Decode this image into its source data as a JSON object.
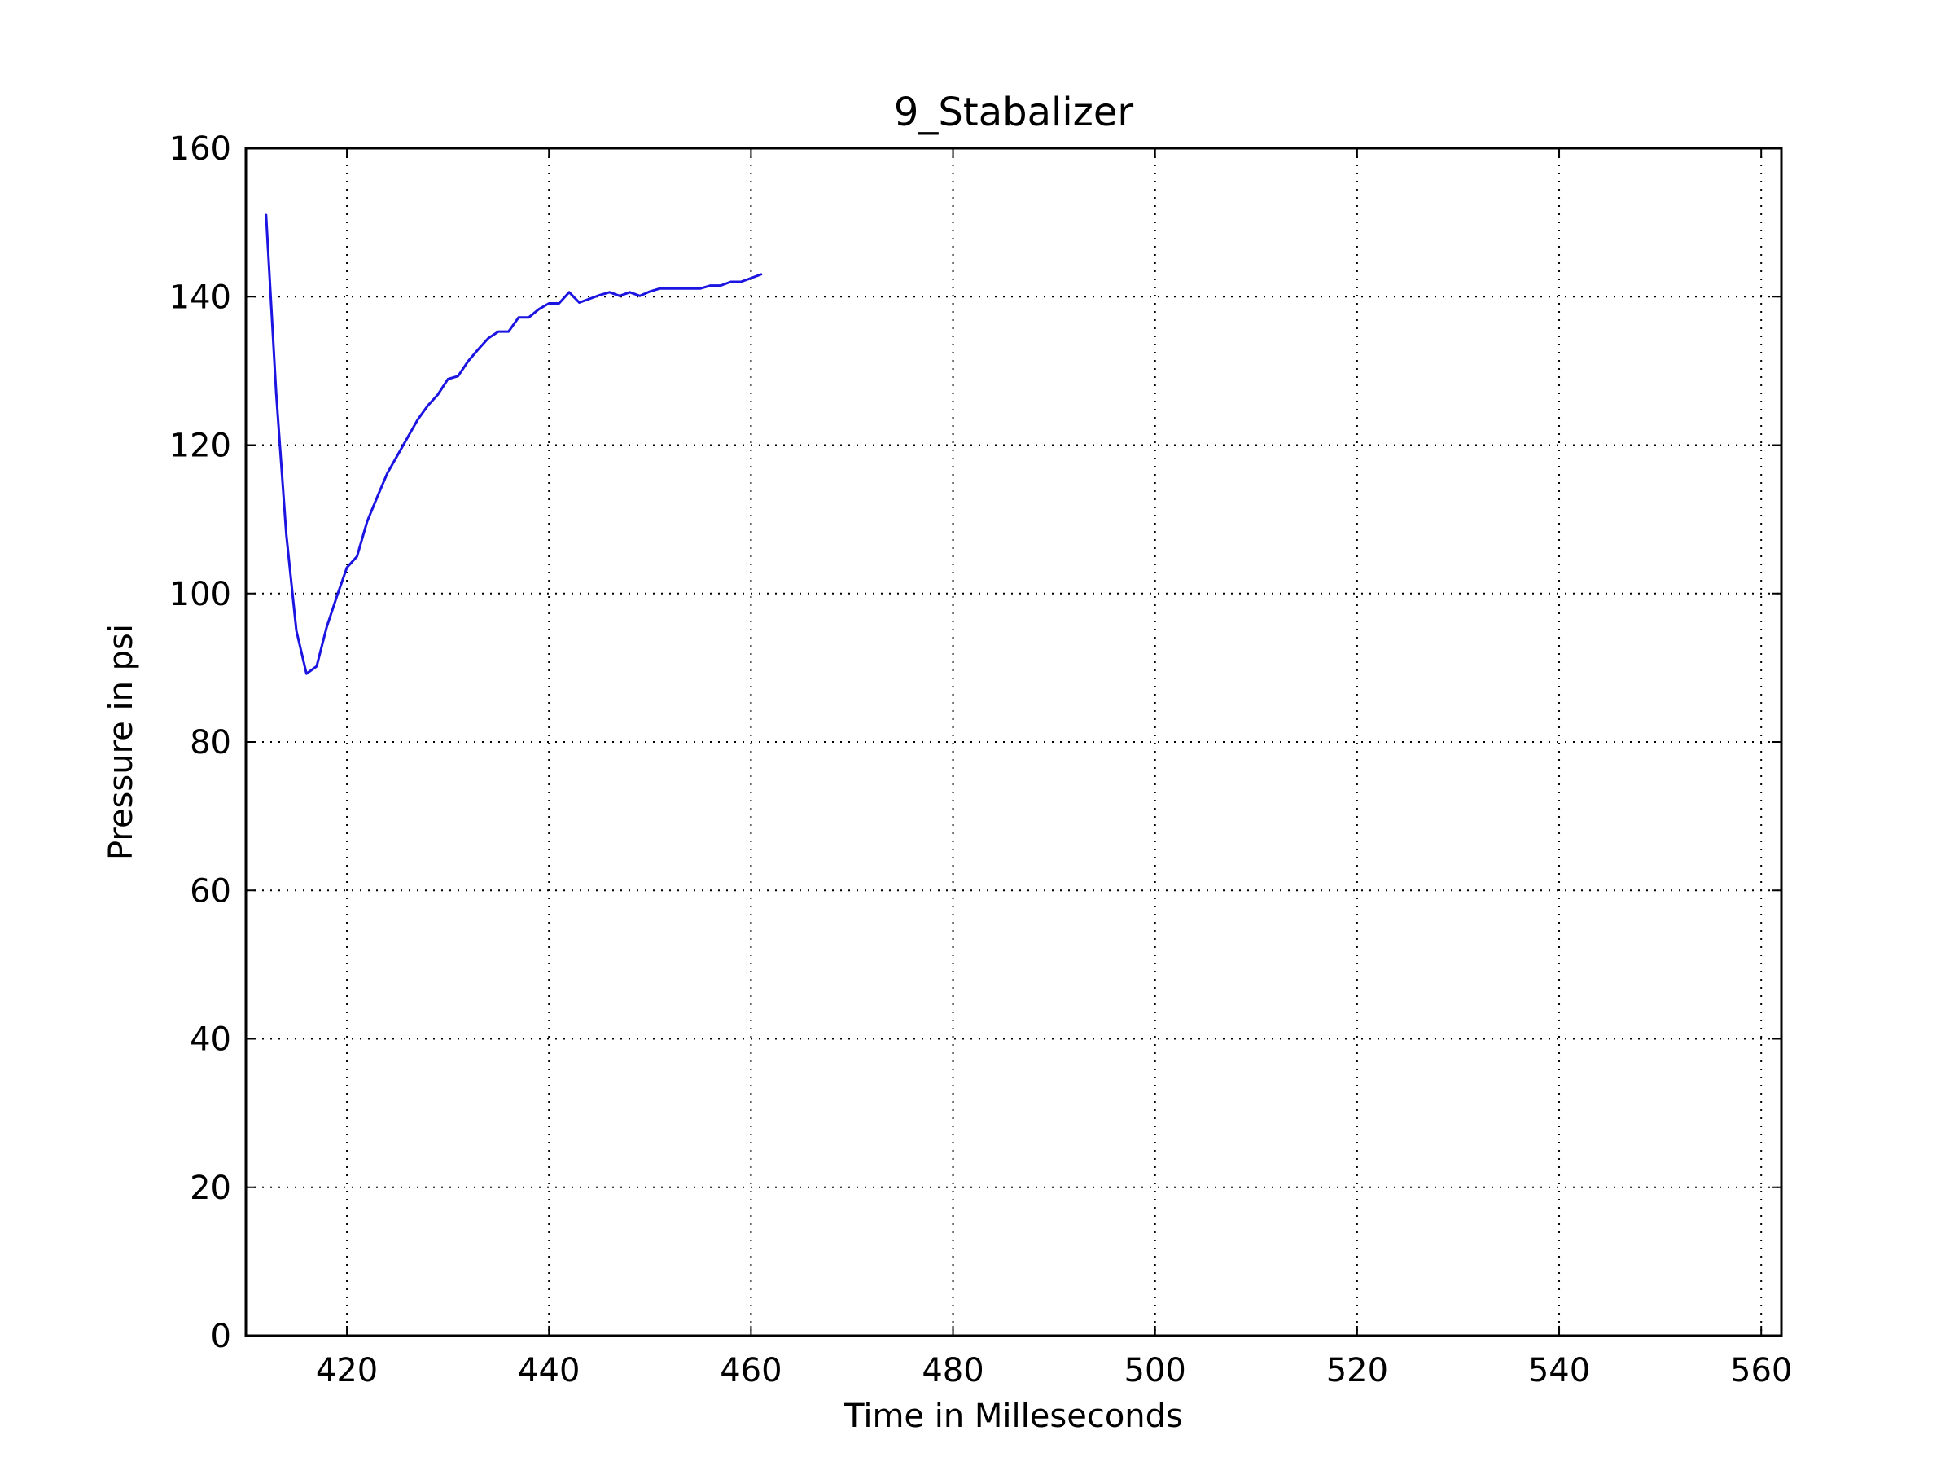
{
  "chart_data": {
    "type": "line",
    "title": "9_Stabalizer",
    "xlabel": "Time in Milleseconds",
    "ylabel": "Pressure in psi",
    "xlim": [
      410,
      562
    ],
    "ylim": [
      0,
      160
    ],
    "xticks": [
      420,
      440,
      460,
      480,
      500,
      520,
      540,
      560
    ],
    "yticks": [
      0,
      20,
      40,
      60,
      80,
      100,
      120,
      140,
      160
    ],
    "grid": true,
    "legend": "none",
    "colors": {
      "series": "#1c14e0"
    },
    "series": [
      {
        "x": [
          412,
          413,
          414,
          415,
          416,
          417,
          418,
          419,
          420,
          421,
          422,
          423,
          424,
          425,
          426,
          427,
          428,
          429,
          430,
          431,
          432,
          433,
          434,
          435,
          436,
          437,
          438,
          439,
          440,
          441,
          442,
          443,
          444,
          445,
          446,
          447,
          448,
          449,
          450,
          451,
          452,
          453,
          454,
          455,
          456,
          457,
          458,
          459,
          460,
          461
        ],
        "y": [
          151,
          127,
          108,
          95,
          89.2,
          90.2,
          95.5,
          99.6,
          103.5,
          105,
          109.7,
          113,
          116.2,
          118.6,
          121,
          123.4,
          125.3,
          126.8,
          128.9,
          129.3,
          131.3,
          132.9,
          134.4,
          135.3,
          135.3,
          137.2,
          137.2,
          138.3,
          139.1,
          139.1,
          140.6,
          139.2,
          139.7,
          140.2,
          140.6,
          140.1,
          140.6,
          140.1,
          140.7,
          141.1,
          141.1,
          141.1,
          141.1,
          141.1,
          141.5,
          141.5,
          142,
          142,
          142.5,
          143
        ]
      }
    ]
  }
}
